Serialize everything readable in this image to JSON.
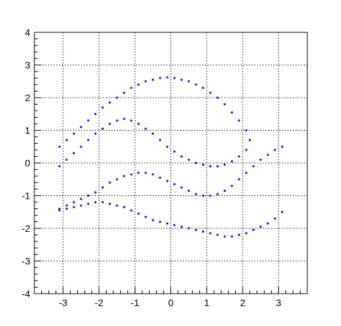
{
  "chart_data": {
    "type": "scatter",
    "xlim": [
      -3.8,
      3.8
    ],
    "ylim": [
      -4,
      4
    ],
    "x_major_ticks": [
      -3,
      -2,
      -1,
      0,
      1,
      2,
      3
    ],
    "y_major_ticks": [
      -4,
      -3,
      -2,
      -1,
      0,
      1,
      2,
      3,
      4
    ],
    "x_tick_labels": [
      "-3",
      "-2",
      "-1",
      "0",
      "1",
      "2",
      "3"
    ],
    "y_tick_labels": [
      "-4",
      "-3",
      "-2",
      "-1",
      "0",
      "1",
      "2",
      "3",
      "4"
    ],
    "grid": true,
    "marker_color": "#1a1ae6",
    "series": [
      {
        "description_visible": "dense point cloud forming a swirling band",
        "x": [
          -3.1,
          -2.9,
          -2.7,
          -2.5,
          -2.3,
          -2.1,
          -1.9,
          -1.7,
          -1.5,
          -1.3,
          -1.1,
          -0.9,
          -0.7,
          -0.5,
          -0.3,
          -0.1,
          0.1,
          0.3,
          0.5,
          0.7,
          0.9,
          1.1,
          1.3,
          1.5,
          1.7,
          1.9,
          2.1,
          2.2,
          2.1,
          1.9,
          1.7,
          1.5,
          1.3,
          1.1,
          0.9,
          0.7,
          0.5,
          0.3,
          0.1,
          -0.1,
          -0.3,
          -0.5,
          -0.7,
          -0.9,
          -1.1,
          -1.3,
          -1.5,
          -1.7,
          -1.9,
          -2.1,
          -2.3,
          -2.5,
          -2.7,
          -2.9,
          -3.1,
          -3.1,
          -2.9,
          -2.7,
          -2.5,
          -2.3,
          -2.1,
          -1.9,
          -1.7,
          -1.5,
          -1.3,
          -1.1,
          -0.9,
          -0.7,
          -0.5,
          -0.3,
          -0.1,
          0.1,
          0.3,
          0.5,
          0.7,
          0.9,
          1.1,
          1.3,
          1.5,
          1.7,
          1.9,
          2.1,
          2.3,
          2.5,
          2.7,
          2.9,
          3.1,
          3.1,
          2.9,
          2.7,
          2.5,
          2.3,
          2.1,
          1.9,
          1.7,
          1.5,
          1.3,
          1.1,
          0.9,
          0.7,
          0.5,
          0.3,
          0.1,
          -0.1,
          -0.3,
          -0.5,
          -0.7,
          -0.9,
          -1.1,
          -1.3,
          -1.5,
          -1.7,
          -1.9,
          -2.1,
          -2.3,
          -2.5,
          -2.7,
          -2.9,
          -3.1
        ],
        "y": [
          0.5,
          0.7,
          0.9,
          1.1,
          1.3,
          1.5,
          1.7,
          1.85,
          2.0,
          2.15,
          2.3,
          2.4,
          2.5,
          2.55,
          2.6,
          2.62,
          2.6,
          2.55,
          2.5,
          2.4,
          2.3,
          2.15,
          2.0,
          1.8,
          1.55,
          1.3,
          1.0,
          0.7,
          0.4,
          0.2,
          0.05,
          -0.05,
          -0.1,
          -0.1,
          -0.05,
          0.0,
          0.1,
          0.2,
          0.35,
          0.5,
          0.7,
          0.9,
          1.05,
          1.2,
          1.3,
          1.35,
          1.3,
          1.2,
          1.05,
          0.9,
          0.7,
          0.5,
          0.3,
          0.1,
          -0.1,
          -1.4,
          -1.3,
          -1.2,
          -1.1,
          -1.0,
          -0.9,
          -0.75,
          -0.6,
          -0.5,
          -0.4,
          -0.35,
          -0.3,
          -0.3,
          -0.35,
          -0.45,
          -0.55,
          -0.65,
          -0.75,
          -0.85,
          -0.95,
          -1.0,
          -1.0,
          -0.95,
          -0.85,
          -0.7,
          -0.5,
          -0.3,
          -0.1,
          0.1,
          0.25,
          0.4,
          0.5,
          -1.5,
          -1.7,
          -1.85,
          -1.95,
          -2.05,
          -2.15,
          -2.2,
          -2.25,
          -2.25,
          -2.2,
          -2.15,
          -2.1,
          -2.05,
          -2.0,
          -1.95,
          -1.9,
          -1.85,
          -1.8,
          -1.75,
          -1.65,
          -1.55,
          -1.45,
          -1.35,
          -1.3,
          -1.25,
          -1.2,
          -1.2,
          -1.25,
          -1.3,
          -1.35,
          -1.4,
          -1.45
        ]
      }
    ]
  }
}
